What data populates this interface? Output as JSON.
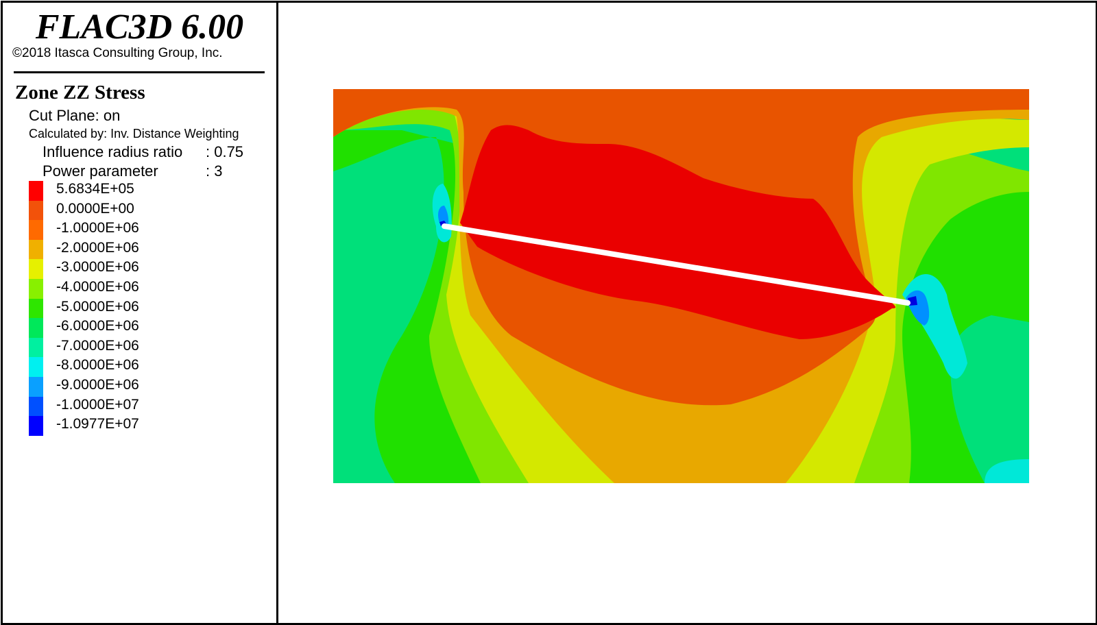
{
  "header": {
    "app_title": "FLAC3D 6.00",
    "copyright": "©2018 Itasca Consulting Group, Inc."
  },
  "plot": {
    "title": "Zone ZZ Stress",
    "cut_plane": "Cut Plane: on",
    "calculated_by": "Calculated by: Inv. Distance Weighting",
    "influence_label": "Influence radius ratio",
    "influence_value": ": 0.75",
    "power_label": "Power parameter",
    "power_value": ": 3"
  },
  "legend": {
    "items": [
      {
        "label": "5.6834E+05",
        "color": "#ff0000"
      },
      {
        "label": "0.0000E+00",
        "color": "#f2520a"
      },
      {
        "label": "-1.0000E+06",
        "color": "#ff6a00"
      },
      {
        "label": "-2.0000E+06",
        "color": "#f0b000"
      },
      {
        "label": "-3.0000E+06",
        "color": "#e6f000"
      },
      {
        "label": "-4.0000E+06",
        "color": "#88f000"
      },
      {
        "label": "-5.0000E+06",
        "color": "#2ee600"
      },
      {
        "label": "-6.0000E+06",
        "color": "#00e85a"
      },
      {
        "label": "-7.0000E+06",
        "color": "#00f0a0"
      },
      {
        "label": "-8.0000E+06",
        "color": "#00f0f0"
      },
      {
        "label": "-9.0000E+06",
        "color": "#0aa0ff"
      },
      {
        "label": "-1.0000E+07",
        "color": "#0050ff"
      },
      {
        "label": "-1.0977E+07",
        "color": "#0000ff"
      }
    ]
  },
  "contour_colors": {
    "red": "#ea0000",
    "dark_orange": "#e85400",
    "orange": "#e8a800",
    "yellow": "#d4e800",
    "light_green": "#80e600",
    "green": "#20e000",
    "sea_green": "#00e07a",
    "cyan": "#00e8d8",
    "blue": "#0090ff",
    "dark_blue": "#0000e0"
  }
}
